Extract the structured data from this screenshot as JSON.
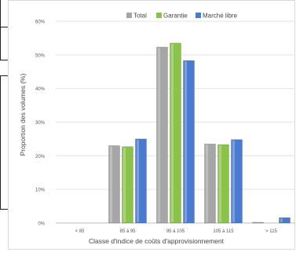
{
  "chart_data": {
    "type": "bar",
    "categories": [
      "< 85",
      "85 à 95",
      "95 à 105",
      "105 à 115",
      "> 115"
    ],
    "series": [
      {
        "name": "Total",
        "color": "#a6a6a6",
        "values": [
          0,
          23,
          52.3,
          23.5,
          0.2
        ]
      },
      {
        "name": "Garantie",
        "color": "#8bc34a",
        "values": [
          0,
          22.7,
          53.5,
          23.3,
          0
        ]
      },
      {
        "name": "Marché libre",
        "color": "#4a7bd0",
        "values": [
          0,
          25,
          48.3,
          24.8,
          1.6
        ]
      }
    ],
    "xlabel": "Classe d'indice de coûts d'approvisionnement",
    "ylabel": "Proportion des volumes (%)",
    "ylim": [
      0,
      60
    ],
    "yticks": [
      "0%",
      "10%",
      "20%",
      "30%",
      "40%",
      "50%",
      "60%"
    ],
    "grid": true,
    "legend_position": "top"
  }
}
